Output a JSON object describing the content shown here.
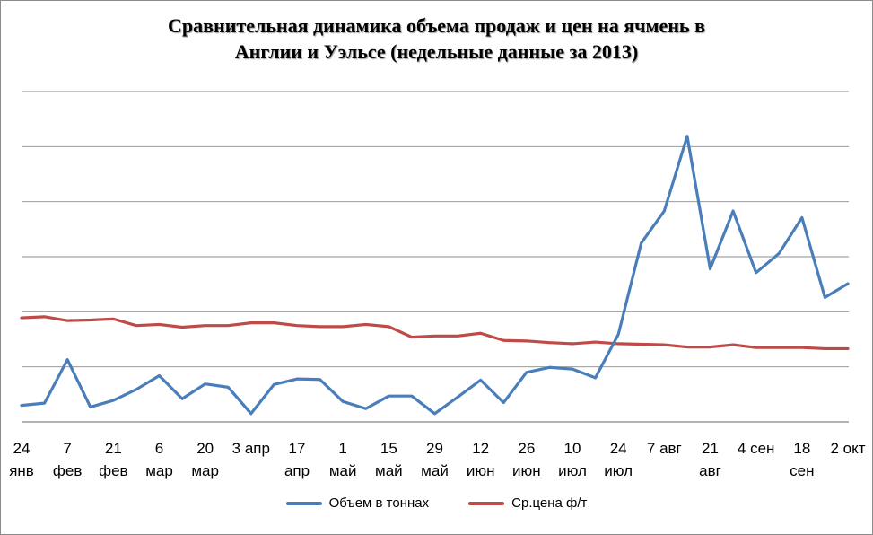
{
  "chart_data": {
    "type": "line",
    "title_line1": "Сравнительная динамика объема продаж и цен на ячмень в",
    "title_line2": "Англии и Уэльсе (недельные данные за 2013)",
    "xlabel": "",
    "ylabel": "",
    "grid": true,
    "legend_position": "bottom",
    "y_axis_labels_visible": false,
    "categories_count": 37,
    "x_labels": [
      {
        "index": 0,
        "line1": "24",
        "line2": "янв"
      },
      {
        "index": 2,
        "line1": "7",
        "line2": "фев"
      },
      {
        "index": 4,
        "line1": "21",
        "line2": "фев"
      },
      {
        "index": 6,
        "line1": "6",
        "line2": "мар"
      },
      {
        "index": 8,
        "line1": "20",
        "line2": "мар"
      },
      {
        "index": 10,
        "line1": "3 апр",
        "line2": ""
      },
      {
        "index": 12,
        "line1": "17",
        "line2": "апр"
      },
      {
        "index": 14,
        "line1": "1",
        "line2": "май"
      },
      {
        "index": 16,
        "line1": "15",
        "line2": "май"
      },
      {
        "index": 18,
        "line1": "29",
        "line2": "май"
      },
      {
        "index": 20,
        "line1": "12",
        "line2": "июн"
      },
      {
        "index": 22,
        "line1": "26",
        "line2": "июн"
      },
      {
        "index": 24,
        "line1": "10",
        "line2": "июл"
      },
      {
        "index": 26,
        "line1": "24",
        "line2": "июл"
      },
      {
        "index": 28,
        "line1": "7 авг",
        "line2": ""
      },
      {
        "index": 30,
        "line1": "21",
        "line2": "авг"
      },
      {
        "index": 32,
        "line1": "4 сен",
        "line2": ""
      },
      {
        "index": 34,
        "line1": "18",
        "line2": "сен"
      },
      {
        "index": 36,
        "line1": "2 окт",
        "line2": ""
      }
    ],
    "ylim": [
      0,
      6
    ],
    "gridlines": [
      0,
      1,
      2,
      3,
      4,
      5,
      6
    ],
    "series": [
      {
        "name": "Объем в тоннах",
        "color": "#4a7ebb",
        "values": [
          0.3,
          0.34,
          1.13,
          0.27,
          0.39,
          0.59,
          0.84,
          0.42,
          0.69,
          0.63,
          0.15,
          0.68,
          0.78,
          0.77,
          0.37,
          0.24,
          0.47,
          0.47,
          0.15,
          0.45,
          0.76,
          0.35,
          0.9,
          0.99,
          0.96,
          0.8,
          1.59,
          3.25,
          3.83,
          5.19,
          2.78,
          3.83,
          2.71,
          3.06,
          3.71,
          2.26,
          2.51
        ]
      },
      {
        "name": "Ср.цена ф/т",
        "color": "#be4b48",
        "values": [
          1.89,
          1.91,
          1.84,
          1.85,
          1.87,
          1.75,
          1.77,
          1.72,
          1.75,
          1.75,
          1.8,
          1.8,
          1.75,
          1.73,
          1.73,
          1.77,
          1.73,
          1.54,
          1.56,
          1.56,
          1.61,
          1.48,
          1.47,
          1.44,
          1.42,
          1.45,
          1.42,
          1.41,
          1.4,
          1.36,
          1.36,
          1.4,
          1.35,
          1.35,
          1.35,
          1.33,
          1.33
        ]
      }
    ]
  }
}
